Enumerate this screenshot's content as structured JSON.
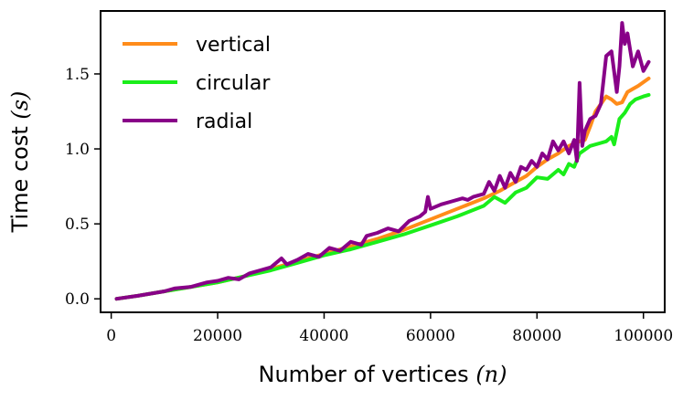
{
  "chart_data": {
    "type": "line",
    "title": "",
    "xlabel": "Number of vertices",
    "xlabel_var": "(n)",
    "ylabel": "Time cost",
    "ylabel_var": "(s)",
    "xlim": [
      -2000,
      104000
    ],
    "ylim": [
      -0.09,
      1.92
    ],
    "xticks": [
      0,
      20000,
      40000,
      60000,
      80000,
      100000
    ],
    "xtick_labels": [
      "0",
      "20000",
      "40000",
      "60000",
      "80000",
      "100000"
    ],
    "yticks": [
      0.0,
      0.5,
      1.0,
      1.5
    ],
    "ytick_labels": [
      "0.0",
      "0.5",
      "1.0",
      "1.5"
    ],
    "grid": false,
    "legend_position": "top-left",
    "series": [
      {
        "name": "vertical",
        "color": "#ff8c1a",
        "points": [
          [
            1000,
            0.0
          ],
          [
            5000,
            0.02
          ],
          [
            10000,
            0.05
          ],
          [
            15000,
            0.08
          ],
          [
            20000,
            0.11
          ],
          [
            25000,
            0.15
          ],
          [
            30000,
            0.2
          ],
          [
            35000,
            0.25
          ],
          [
            40000,
            0.3
          ],
          [
            45000,
            0.35
          ],
          [
            50000,
            0.4
          ],
          [
            55000,
            0.46
          ],
          [
            60000,
            0.53
          ],
          [
            65000,
            0.6
          ],
          [
            70000,
            0.67
          ],
          [
            73000,
            0.72
          ],
          [
            75000,
            0.76
          ],
          [
            78000,
            0.82
          ],
          [
            80000,
            0.88
          ],
          [
            82000,
            0.93
          ],
          [
            84000,
            0.97
          ],
          [
            86000,
            1.02
          ],
          [
            88000,
            1.05
          ],
          [
            89000,
            1.06
          ],
          [
            90000,
            1.15
          ],
          [
            91000,
            1.25
          ],
          [
            92000,
            1.3
          ],
          [
            93000,
            1.35
          ],
          [
            94000,
            1.33
          ],
          [
            95000,
            1.3
          ],
          [
            96000,
            1.31
          ],
          [
            97000,
            1.38
          ],
          [
            98000,
            1.4
          ],
          [
            99000,
            1.42
          ],
          [
            101000,
            1.47
          ]
        ]
      },
      {
        "name": "circular",
        "color": "#1aee1a",
        "points": [
          [
            1000,
            0.0
          ],
          [
            5000,
            0.02
          ],
          [
            10000,
            0.05
          ],
          [
            15000,
            0.08
          ],
          [
            20000,
            0.11
          ],
          [
            25000,
            0.15
          ],
          [
            30000,
            0.19
          ],
          [
            35000,
            0.24
          ],
          [
            40000,
            0.29
          ],
          [
            45000,
            0.33
          ],
          [
            50000,
            0.38
          ],
          [
            55000,
            0.43
          ],
          [
            60000,
            0.49
          ],
          [
            65000,
            0.55
          ],
          [
            70000,
            0.62
          ],
          [
            72000,
            0.68
          ],
          [
            74000,
            0.64
          ],
          [
            76000,
            0.71
          ],
          [
            78000,
            0.74
          ],
          [
            80000,
            0.81
          ],
          [
            82000,
            0.8
          ],
          [
            84000,
            0.86
          ],
          [
            85000,
            0.83
          ],
          [
            86000,
            0.9
          ],
          [
            87000,
            0.88
          ],
          [
            88000,
            0.97
          ],
          [
            90000,
            1.02
          ],
          [
            92000,
            1.04
          ],
          [
            93000,
            1.05
          ],
          [
            94000,
            1.08
          ],
          [
            94500,
            1.03
          ],
          [
            95500,
            1.2
          ],
          [
            96500,
            1.24
          ],
          [
            97500,
            1.3
          ],
          [
            98500,
            1.33
          ],
          [
            100000,
            1.35
          ],
          [
            101000,
            1.36
          ]
        ]
      },
      {
        "name": "radial",
        "color": "#880088",
        "points": [
          [
            1000,
            0.0
          ],
          [
            5000,
            0.02
          ],
          [
            10000,
            0.05
          ],
          [
            12000,
            0.07
          ],
          [
            15000,
            0.08
          ],
          [
            18000,
            0.11
          ],
          [
            20000,
            0.12
          ],
          [
            22000,
            0.14
          ],
          [
            24000,
            0.13
          ],
          [
            26000,
            0.17
          ],
          [
            28000,
            0.19
          ],
          [
            30000,
            0.21
          ],
          [
            32000,
            0.27
          ],
          [
            33000,
            0.23
          ],
          [
            35000,
            0.26
          ],
          [
            37000,
            0.3
          ],
          [
            39000,
            0.28
          ],
          [
            41000,
            0.34
          ],
          [
            43000,
            0.32
          ],
          [
            45000,
            0.38
          ],
          [
            47000,
            0.36
          ],
          [
            48000,
            0.42
          ],
          [
            50000,
            0.44
          ],
          [
            52000,
            0.47
          ],
          [
            54000,
            0.45
          ],
          [
            56000,
            0.52
          ],
          [
            58000,
            0.55
          ],
          [
            59000,
            0.58
          ],
          [
            59500,
            0.68
          ],
          [
            60000,
            0.6
          ],
          [
            62000,
            0.63
          ],
          [
            64000,
            0.65
          ],
          [
            66000,
            0.67
          ],
          [
            67000,
            0.66
          ],
          [
            68000,
            0.68
          ],
          [
            70000,
            0.7
          ],
          [
            71000,
            0.78
          ],
          [
            72000,
            0.72
          ],
          [
            73000,
            0.82
          ],
          [
            74000,
            0.74
          ],
          [
            75000,
            0.84
          ],
          [
            76000,
            0.78
          ],
          [
            77000,
            0.88
          ],
          [
            78000,
            0.86
          ],
          [
            79000,
            0.92
          ],
          [
            80000,
            0.88
          ],
          [
            81000,
            0.97
          ],
          [
            82000,
            0.93
          ],
          [
            83000,
            1.05
          ],
          [
            84000,
            0.99
          ],
          [
            85000,
            1.05
          ],
          [
            86000,
            0.97
          ],
          [
            87000,
            1.06
          ],
          [
            87500,
            0.92
          ],
          [
            88000,
            1.44
          ],
          [
            88500,
            1.02
          ],
          [
            89000,
            1.12
          ],
          [
            90000,
            1.2
          ],
          [
            91000,
            1.22
          ],
          [
            92000,
            1.3
          ],
          [
            93000,
            1.62
          ],
          [
            94000,
            1.65
          ],
          [
            95000,
            1.38
          ],
          [
            95500,
            1.55
          ],
          [
            96000,
            1.84
          ],
          [
            96500,
            1.7
          ],
          [
            97000,
            1.77
          ],
          [
            98000,
            1.55
          ],
          [
            99000,
            1.65
          ],
          [
            100000,
            1.52
          ],
          [
            101000,
            1.58
          ]
        ]
      }
    ]
  }
}
